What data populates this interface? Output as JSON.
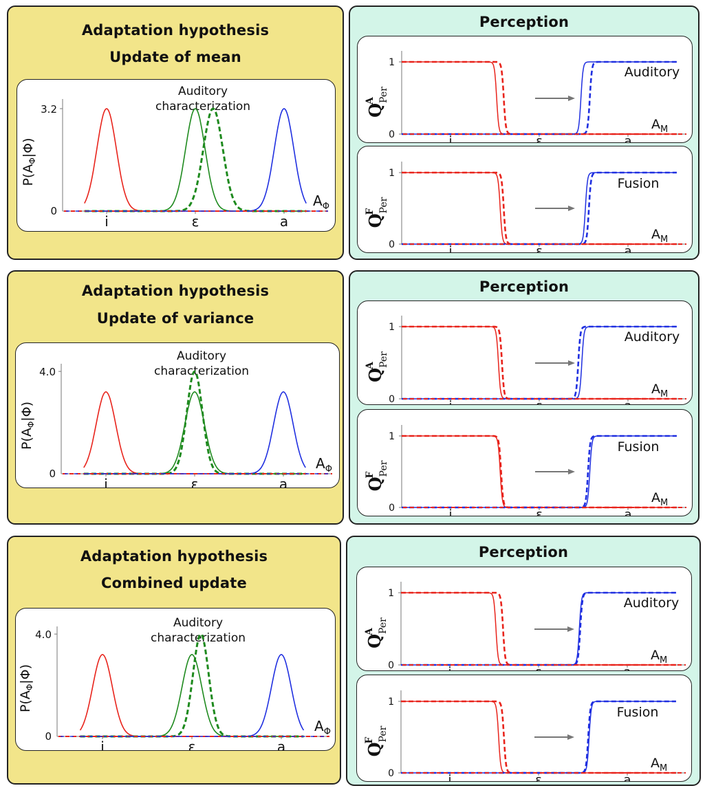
{
  "rows": [
    {
      "left": {
        "title1": "Adaptation hypothesis",
        "title2": "Update of mean",
        "plot_title": "Auditory characterization",
        "ylabel": "P(AΦ|Φ)",
        "ytick": "3.2",
        "yzero": "0",
        "xvar": "AΦ",
        "xticks": [
          "i",
          "ε",
          "a"
        ]
      },
      "right": {
        "title": "Perception",
        "top": {
          "label": "Auditory",
          "ylabel": "Q^A_Per",
          "xvar": "A_M",
          "yticks": [
            "0",
            "1"
          ],
          "xticks": [
            "i",
            "ε",
            "a"
          ]
        },
        "bottom": {
          "label": "Fusion",
          "ylabel": "Q^F_Per",
          "xvar": "A_M",
          "yticks": [
            "0",
            "1"
          ],
          "xticks": [
            "i",
            "ε",
            "a"
          ]
        }
      }
    },
    {
      "left": {
        "title1": "Adaptation hypothesis",
        "title2": "Update of variance",
        "plot_title": "Auditory characterization",
        "ylabel": "P(AΦ|Φ)",
        "ytick": "4.0",
        "yzero": "0",
        "xvar": "AΦ",
        "xticks": [
          "i",
          "ε",
          "a"
        ]
      },
      "right": {
        "title": "Perception",
        "top": {
          "label": "Auditory",
          "ylabel": "Q^A_Per",
          "xvar": "A_M",
          "yticks": [
            "0",
            "1"
          ],
          "xticks": [
            "i",
            "ε",
            "a"
          ]
        },
        "bottom": {
          "label": "Fusion",
          "ylabel": "Q^F_Per",
          "xvar": "A_M",
          "yticks": [
            "0",
            "1"
          ],
          "xticks": [
            "i",
            "ε",
            "a"
          ]
        }
      }
    },
    {
      "left": {
        "title1": "Adaptation hypothesis",
        "title2": "Combined update",
        "plot_title": "Auditory characterization",
        "ylabel": "P(AΦ|Φ)",
        "ytick": "4.0",
        "yzero": "0",
        "xvar": "AΦ",
        "xticks": [
          "i",
          "ε",
          "a"
        ]
      },
      "right": {
        "title": "Perception",
        "top": {
          "label": "Auditory",
          "ylabel": "Q^A_Per",
          "xvar": "A_M",
          "yticks": [
            "0",
            "1"
          ],
          "xticks": [
            "i",
            "ε",
            "a"
          ]
        },
        "bottom": {
          "label": "Fusion",
          "ylabel": "Q^F_Per",
          "xvar": "A_M",
          "yticks": [
            "0",
            "1"
          ],
          "xticks": [
            "i",
            "ε",
            "a"
          ]
        }
      }
    }
  ],
  "colors": {
    "left_panel": "#f2e58a",
    "right_panel": "#d3f5e8",
    "red": "#e8231b",
    "green": "#1e8a1e",
    "blue": "#1f2fe0",
    "arrow": "#777777"
  },
  "chart_data": [
    {
      "type": "line",
      "x_categories": [
        "i",
        "ε",
        "a"
      ],
      "ylim": [
        0,
        3.5
      ],
      "yticks": [
        0,
        3.2
      ],
      "series": [
        {
          "category": "i",
          "style": "solid",
          "color": "red",
          "center": 0,
          "peak": 3.2,
          "sd": 0.11
        },
        {
          "category": "ε",
          "style": "solid",
          "color": "green",
          "center": 1,
          "peak": 3.2,
          "sd": 0.11
        },
        {
          "category": "ε",
          "style": "dashed",
          "color": "green",
          "center": 1.2,
          "peak": 3.2,
          "sd": 0.11
        },
        {
          "category": "a",
          "style": "solid",
          "color": "blue",
          "center": 2,
          "peak": 3.2,
          "sd": 0.11
        }
      ]
    },
    {
      "type": "line",
      "x_categories": [
        "i",
        "ε",
        "a"
      ],
      "ylim": [
        0,
        1
      ],
      "yticks": [
        0,
        1
      ],
      "series": [
        {
          "color": "red",
          "style": "solid",
          "direction": "falling",
          "threshold": 0.52
        },
        {
          "color": "red",
          "style": "dashed",
          "direction": "falling",
          "threshold": 0.6
        },
        {
          "color": "blue",
          "style": "solid",
          "direction": "rising",
          "threshold": 1.47
        },
        {
          "color": "blue",
          "style": "dashed",
          "direction": "rising",
          "threshold": 1.57
        }
      ]
    },
    {
      "type": "line",
      "x_categories": [
        "i",
        "ε",
        "a"
      ],
      "ylim": [
        0,
        1
      ],
      "yticks": [
        0,
        1
      ],
      "series": [
        {
          "color": "red",
          "style": "solid",
          "direction": "falling",
          "threshold": 0.56
        },
        {
          "color": "red",
          "style": "dashed",
          "direction": "falling",
          "threshold": 0.6
        },
        {
          "color": "blue",
          "style": "solid",
          "direction": "rising",
          "threshold": 1.52
        },
        {
          "color": "blue",
          "style": "dashed",
          "direction": "rising",
          "threshold": 1.56
        }
      ]
    },
    {
      "type": "line",
      "x_categories": [
        "i",
        "ε",
        "a"
      ],
      "ylim": [
        0,
        4.3
      ],
      "yticks": [
        0,
        4.0
      ],
      "series": [
        {
          "category": "i",
          "style": "solid",
          "color": "red",
          "center": 0,
          "peak": 3.2,
          "sd": 0.11
        },
        {
          "category": "ε",
          "style": "solid",
          "color": "green",
          "center": 1,
          "peak": 3.2,
          "sd": 0.11
        },
        {
          "category": "ε",
          "style": "dashed",
          "color": "green",
          "center": 1,
          "peak": 4.0,
          "sd": 0.088
        },
        {
          "category": "a",
          "style": "solid",
          "color": "blue",
          "center": 2,
          "peak": 3.2,
          "sd": 0.11
        }
      ]
    },
    {
      "type": "line",
      "x_categories": [
        "i",
        "ε",
        "a"
      ],
      "ylim": [
        0,
        1
      ],
      "yticks": [
        0,
        1
      ],
      "series": [
        {
          "color": "red",
          "style": "solid",
          "direction": "falling",
          "threshold": 0.54
        },
        {
          "color": "red",
          "style": "dashed",
          "direction": "falling",
          "threshold": 0.58
        },
        {
          "color": "blue",
          "style": "solid",
          "direction": "rising",
          "threshold": 1.48
        },
        {
          "color": "blue",
          "style": "dashed",
          "direction": "rising",
          "threshold": 1.44
        }
      ]
    },
    {
      "type": "line",
      "x_categories": [
        "i",
        "ε",
        "a"
      ],
      "ylim": [
        0,
        1
      ],
      "yticks": [
        0,
        1
      ],
      "series": [
        {
          "color": "red",
          "style": "solid",
          "direction": "falling",
          "threshold": 0.56
        },
        {
          "color": "red",
          "style": "dashed",
          "direction": "falling",
          "threshold": 0.57
        },
        {
          "color": "blue",
          "style": "solid",
          "direction": "rising",
          "threshold": 1.57
        },
        {
          "color": "blue",
          "style": "dashed",
          "direction": "rising",
          "threshold": 1.55
        }
      ]
    },
    {
      "type": "line",
      "x_categories": [
        "i",
        "ε",
        "a"
      ],
      "ylim": [
        0,
        4.3
      ],
      "yticks": [
        0,
        4.0
      ],
      "series": [
        {
          "category": "i",
          "style": "solid",
          "color": "red",
          "center": 0,
          "peak": 3.2,
          "sd": 0.11
        },
        {
          "category": "ε",
          "style": "solid",
          "color": "green",
          "center": 1,
          "peak": 3.2,
          "sd": 0.11
        },
        {
          "category": "ε",
          "style": "dashed",
          "color": "green",
          "center": 1.1,
          "peak": 4.0,
          "sd": 0.088
        },
        {
          "category": "a",
          "style": "solid",
          "color": "blue",
          "center": 2,
          "peak": 3.2,
          "sd": 0.11
        }
      ]
    },
    {
      "type": "line",
      "x_categories": [
        "i",
        "ε",
        "a"
      ],
      "ylim": [
        0,
        1
      ],
      "yticks": [
        0,
        1
      ],
      "series": [
        {
          "color": "red",
          "style": "solid",
          "direction": "falling",
          "threshold": 0.52
        },
        {
          "color": "red",
          "style": "dashed",
          "direction": "falling",
          "threshold": 0.6
        },
        {
          "color": "blue",
          "style": "solid",
          "direction": "rising",
          "threshold": 1.46
        },
        {
          "color": "blue",
          "style": "dashed",
          "direction": "rising",
          "threshold": 1.47
        }
      ]
    },
    {
      "type": "line",
      "x_categories": [
        "i",
        "ε",
        "a"
      ],
      "ylim": [
        0,
        1
      ],
      "yticks": [
        0,
        1
      ],
      "series": [
        {
          "color": "red",
          "style": "solid",
          "direction": "falling",
          "threshold": 0.55
        },
        {
          "color": "red",
          "style": "dashed",
          "direction": "falling",
          "threshold": 0.61
        },
        {
          "color": "blue",
          "style": "solid",
          "direction": "rising",
          "threshold": 1.57
        },
        {
          "color": "blue",
          "style": "dashed",
          "direction": "rising",
          "threshold": 1.56
        }
      ]
    }
  ]
}
